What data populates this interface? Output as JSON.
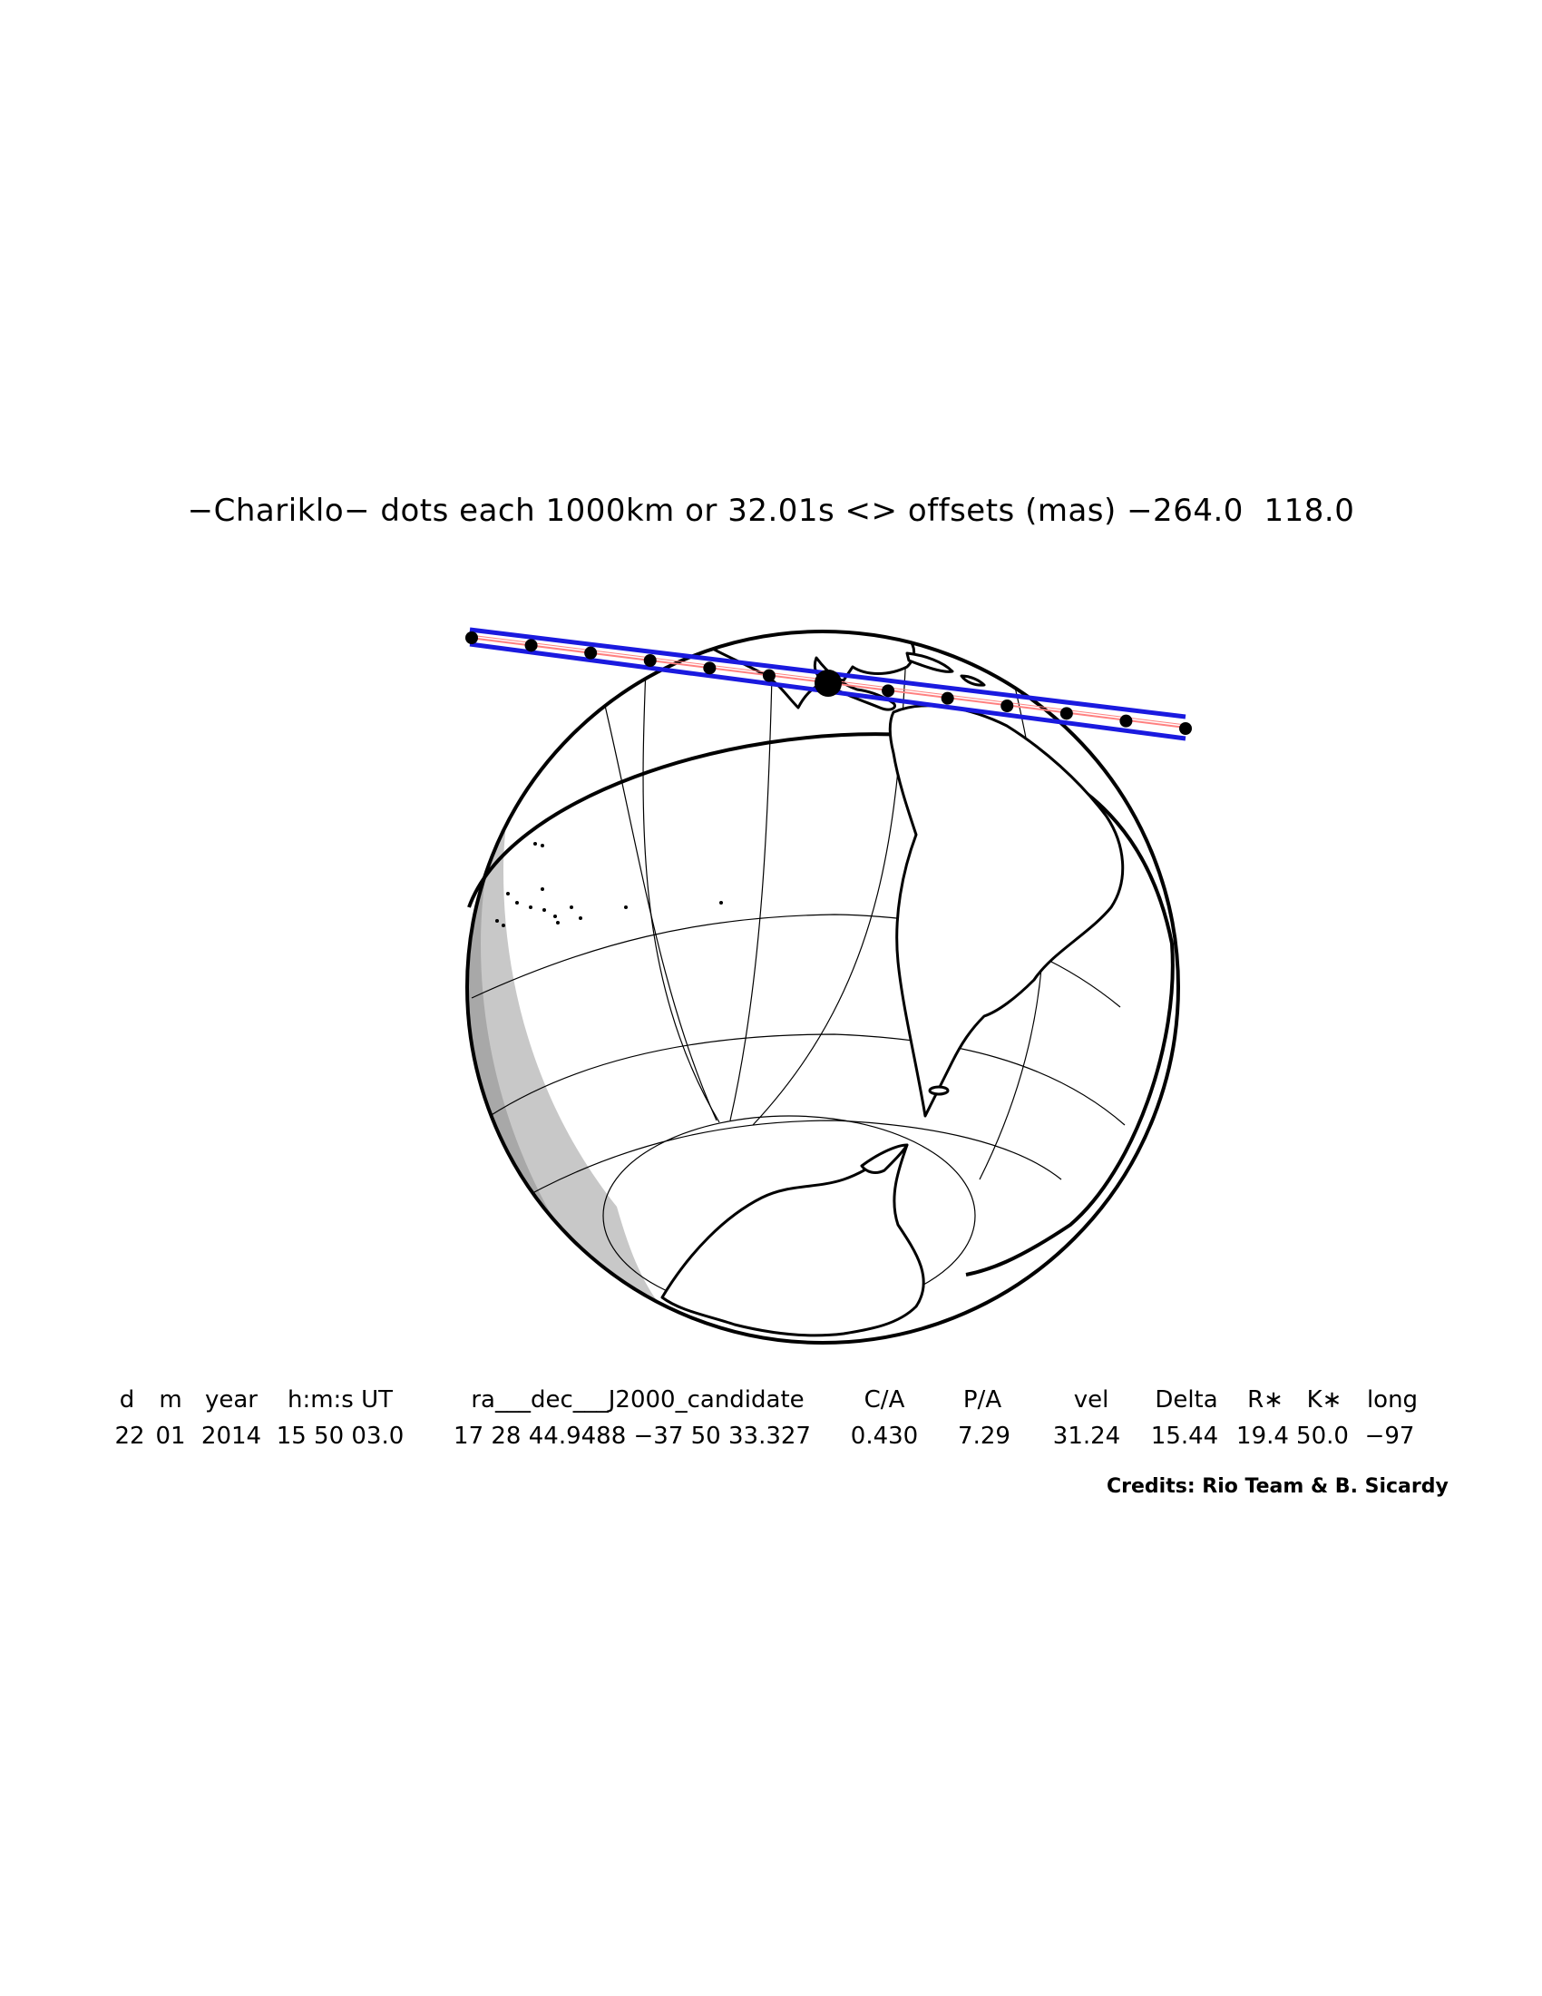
{
  "title": "−Chariklo− dots each 1000km or 32.01s <> offsets (mas) −264.0  118.0",
  "table": {
    "headers": [
      "d",
      "m",
      "year",
      "h:m:s UT",
      "ra___dec___J2000_candidate",
      "C/A",
      "P/A",
      "vel",
      "Delta",
      "R∗",
      "K∗",
      "long"
    ],
    "values": [
      "22",
      "01",
      "2014",
      "15 50 03.0",
      "17 28 44.9488 −37 50 33.327",
      "0.430",
      "7.29",
      "31.24",
      "15.44",
      "19.4",
      "50.0",
      "−97"
    ]
  },
  "credits": "Credits: Rio Team & B. Sicardy",
  "colors": {
    "path_line": "#1a1adf",
    "path_center": "#ff8080",
    "night": "#c8c8c8",
    "twilight": "#a8a8a8",
    "outline": "#000000"
  },
  "icons": [
    "globe-map",
    "occultation-path",
    "track-dots",
    "shadow-center-dot"
  ]
}
